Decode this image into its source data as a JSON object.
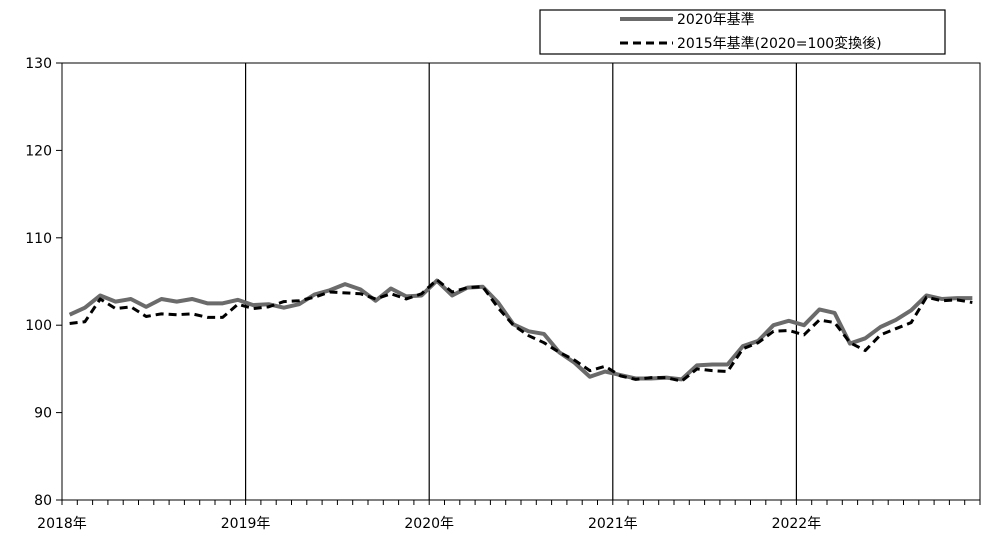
{
  "chart_data": {
    "type": "line",
    "title": "",
    "xlabel": "",
    "ylabel": "",
    "ylim": [
      80,
      130
    ],
    "yticks": [
      80,
      90,
      100,
      110,
      120,
      130
    ],
    "ytick_labels": [
      "80",
      "90",
      "100",
      "110",
      "120",
      "130"
    ],
    "xtick_labels": [
      "2018年",
      "2019年",
      "2020年",
      "2021年",
      "2022年"
    ],
    "x_start": "2018-01",
    "x_end": "2022-12",
    "grid": false,
    "year_dividers": [
      "2019年",
      "2020年",
      "2021年",
      "2022年"
    ],
    "legend_position": "top-right",
    "series": [
      {
        "name": "2020年基準",
        "color": "#6b6b6b",
        "style": "solid",
        "values": [
          101.2,
          102.0,
          103.4,
          102.7,
          103.0,
          102.1,
          103.0,
          102.7,
          103.0,
          102.5,
          102.5,
          102.9,
          102.3,
          102.4,
          102.0,
          102.4,
          103.5,
          104.0,
          104.7,
          104.1,
          102.8,
          104.2,
          103.3,
          103.4,
          105.1,
          103.4,
          104.3,
          104.4,
          102.6,
          100.1,
          99.3,
          99.0,
          96.9,
          95.7,
          94.1,
          94.7,
          94.3,
          93.9,
          93.9,
          94.0,
          93.8,
          95.4,
          95.5,
          95.5,
          97.6,
          98.2,
          100.0,
          100.5,
          100.0,
          101.8,
          101.4,
          97.9,
          98.5,
          99.8,
          100.6,
          101.7,
          103.4,
          103.0,
          103.1,
          103.1
        ]
      },
      {
        "name": "2015年基準(2020=100変換後)",
        "color": "#000000",
        "style": "dashed",
        "values": [
          100.2,
          100.4,
          103.0,
          101.9,
          102.1,
          101.0,
          101.3,
          101.2,
          101.3,
          100.9,
          100.9,
          102.4,
          101.9,
          102.1,
          102.7,
          102.8,
          103.2,
          103.8,
          103.7,
          103.6,
          103.0,
          103.6,
          103.0,
          103.6,
          105.2,
          103.8,
          104.3,
          104.4,
          102.0,
          100.0,
          98.8,
          98.0,
          96.9,
          96.0,
          94.8,
          95.3,
          94.2,
          93.8,
          94.0,
          94.0,
          93.6,
          95.0,
          94.8,
          94.7,
          97.3,
          98.0,
          99.3,
          99.4,
          98.9,
          100.6,
          100.3,
          98.0,
          97.1,
          98.9,
          99.6,
          100.3,
          103.2,
          102.8,
          102.9,
          102.6
        ]
      }
    ]
  }
}
